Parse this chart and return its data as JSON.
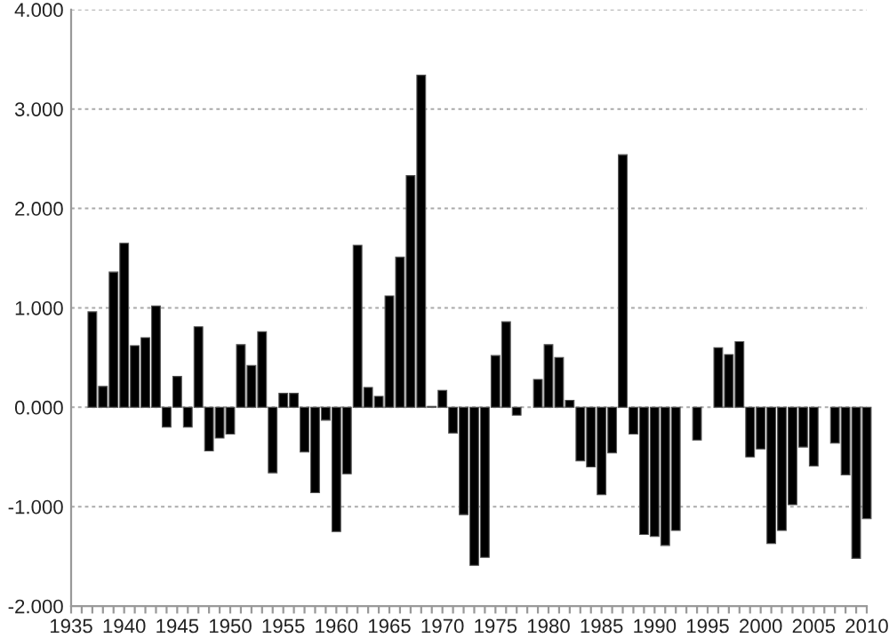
{
  "chart_data": {
    "type": "bar",
    "x": [
      1937,
      1938,
      1939,
      1940,
      1941,
      1942,
      1943,
      1944,
      1945,
      1946,
      1947,
      1948,
      1949,
      1950,
      1951,
      1952,
      1953,
      1954,
      1955,
      1956,
      1957,
      1958,
      1959,
      1960,
      1961,
      1962,
      1963,
      1964,
      1965,
      1966,
      1967,
      1968,
      1969,
      1970,
      1971,
      1972,
      1973,
      1974,
      1975,
      1976,
      1977,
      1978,
      1979,
      1980,
      1981,
      1982,
      1983,
      1984,
      1985,
      1986,
      1987,
      1988,
      1989,
      1990,
      1991,
      1992,
      1993,
      1994,
      1995,
      1996,
      1997,
      1998,
      1999,
      2000,
      2001,
      2002,
      2003,
      2004,
      2005,
      2006,
      2007,
      2008,
      2009,
      2010
    ],
    "values": [
      0.96,
      0.21,
      1.36,
      1.65,
      0.62,
      0.7,
      1.02,
      -0.2,
      0.31,
      -0.2,
      0.81,
      -0.44,
      -0.31,
      -0.27,
      0.63,
      0.42,
      0.76,
      -0.66,
      0.14,
      0.14,
      -0.45,
      -0.86,
      -0.13,
      -1.25,
      -0.67,
      1.63,
      0.2,
      0.11,
      1.12,
      1.51,
      2.33,
      3.34,
      0.01,
      0.17,
      -0.26,
      -1.08,
      -1.59,
      -1.51,
      0.52,
      0.86,
      -0.08,
      null,
      0.28,
      0.63,
      0.5,
      0.07,
      -0.54,
      -0.6,
      -0.88,
      -0.46,
      2.54,
      -0.27,
      -1.28,
      -1.3,
      -1.39,
      -1.24,
      null,
      -0.33,
      null,
      0.6,
      0.53,
      0.66,
      -0.5,
      -0.42,
      -1.37,
      -1.24,
      -0.98,
      -0.4,
      -0.59,
      null,
      -0.36,
      -0.68,
      -1.52,
      -1.12
    ],
    "color": "#000000",
    "xlim": [
      1935,
      2010
    ],
    "xticks": [
      1935,
      {
        "value": 1936,
        "label": null
      },
      {
        "value": 1937,
        "label": null
      },
      {
        "value": 1938,
        "label": null
      },
      {
        "value": 1939,
        "label": null
      },
      1940,
      {
        "value": 1941,
        "label": null
      },
      {
        "value": 1942,
        "label": null
      },
      {
        "value": 1943,
        "label": null
      },
      {
        "value": 1944,
        "label": null
      },
      1945,
      {
        "value": 1946,
        "label": null
      },
      {
        "value": 1947,
        "label": null
      },
      {
        "value": 1948,
        "label": null
      },
      {
        "value": 1949,
        "label": null
      },
      1950,
      {
        "value": 1951,
        "label": null
      },
      {
        "value": 1952,
        "label": null
      },
      {
        "value": 1953,
        "label": null
      },
      {
        "value": 1954,
        "label": null
      },
      1955,
      {
        "value": 1956,
        "label": null
      },
      {
        "value": 1957,
        "label": null
      },
      {
        "value": 1958,
        "label": null
      },
      {
        "value": 1959,
        "label": null
      },
      1960,
      {
        "value": 1961,
        "label": null
      },
      {
        "value": 1962,
        "label": null
      },
      {
        "value": 1963,
        "label": null
      },
      {
        "value": 1964,
        "label": null
      },
      1965,
      {
        "value": 1966,
        "label": null
      },
      {
        "value": 1967,
        "label": null
      },
      {
        "value": 1968,
        "label": null
      },
      {
        "value": 1969,
        "label": null
      },
      1970,
      {
        "value": 1971,
        "label": null
      },
      {
        "value": 1972,
        "label": null
      },
      {
        "value": 1973,
        "label": null
      },
      {
        "value": 1974,
        "label": null
      },
      1975,
      {
        "value": 1976,
        "label": null
      },
      {
        "value": 1977,
        "label": null
      },
      {
        "value": 1978,
        "label": null
      },
      {
        "value": 1979,
        "label": null
      },
      1980,
      {
        "value": 1981,
        "label": null
      },
      {
        "value": 1982,
        "label": null
      },
      {
        "value": 1983,
        "label": null
      },
      {
        "value": 1984,
        "label": null
      },
      1985,
      {
        "value": 1986,
        "label": null
      },
      {
        "value": 1987,
        "label": null
      },
      {
        "value": 1988,
        "label": null
      },
      {
        "value": 1989,
        "label": null
      },
      1990,
      {
        "value": 1991,
        "label": null
      },
      {
        "value": 1992,
        "label": null
      },
      {
        "value": 1993,
        "label": null
      },
      {
        "value": 1994,
        "label": null
      },
      1995,
      {
        "value": 1996,
        "label": null
      },
      {
        "value": 1997,
        "label": null
      },
      {
        "value": 1998,
        "label": null
      },
      {
        "value": 1999,
        "label": null
      },
      2000,
      {
        "value": 2001,
        "label": null
      },
      {
        "value": 2002,
        "label": null
      },
      {
        "value": 2003,
        "label": null
      },
      {
        "value": 2004,
        "label": null
      },
      2005,
      {
        "value": 2006,
        "label": null
      },
      {
        "value": 2007,
        "label": null
      },
      {
        "value": 2008,
        "label": null
      },
      {
        "value": 2009,
        "label": null
      },
      2010
    ],
    "ylim": [
      -2,
      4
    ],
    "yticks": [
      {
        "value": -2,
        "label": "-2.000"
      },
      {
        "value": -1,
        "label": "-1.000"
      },
      {
        "value": 0,
        "label": "0.000"
      },
      {
        "value": 1,
        "label": "1.000"
      },
      {
        "value": 2,
        "label": "2.000"
      },
      {
        "value": 3,
        "label": "3.000"
      },
      {
        "value": 4,
        "label": "4.000"
      }
    ],
    "grid": "y"
  }
}
